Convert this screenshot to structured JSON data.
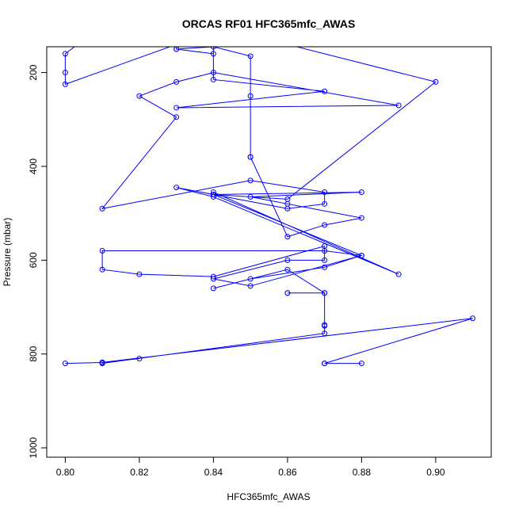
{
  "chart_data": {
    "type": "line",
    "title": "ORCAS RF01 HFC365mfc_AWAS",
    "xlabel": "HFC365mfc_AWAS",
    "ylabel": "Pressure (mbar)",
    "xlim": [
      0.795,
      0.915
    ],
    "ylim": [
      1020,
      145
    ],
    "y_reversed": true,
    "grid": false,
    "legend": "none",
    "x_ticks": [
      0.8,
      0.82,
      0.84,
      0.86,
      0.88,
      0.9
    ],
    "x_tick_labels": [
      "0.80",
      "0.82",
      "0.84",
      "0.86",
      "0.88",
      "0.90"
    ],
    "y_ticks": [
      200,
      400,
      600,
      800,
      1000
    ],
    "y_tick_labels": [
      "200",
      "400",
      "600",
      "800",
      "1000"
    ],
    "series_color": "#0000ff",
    "series": [
      {
        "x": [
          0.87,
          0.88,
          0.87,
          0.91,
          0.81,
          0.8,
          0.81,
          0.82,
          0.81,
          0.81,
          0.87,
          0.87,
          0.87,
          0.87,
          0.86,
          0.86,
          0.87,
          0.87,
          0.86,
          0.84,
          0.85,
          0.87,
          0.88,
          0.87,
          0.81,
          0.81,
          0.82,
          0.84,
          0.87,
          0.87,
          0.86,
          0.84,
          0.85,
          0.88,
          0.84,
          0.84,
          0.89,
          0.84,
          0.83,
          0.86,
          0.87,
          0.87,
          0.85,
          0.81,
          0.83,
          0.82,
          0.83,
          0.84,
          0.89,
          0.83,
          0.87,
          0.84,
          0.84,
          0.81,
          0.8,
          0.8,
          0.8,
          0.83,
          0.83,
          0.84,
          0.83,
          0.84,
          0.85,
          0.85,
          0.85,
          0.85,
          0.86,
          0.87,
          0.88,
          0.86,
          0.85,
          0.88,
          0.84,
          0.86,
          0.9,
          0.86,
          0.85
        ],
        "y": [
          820,
          820,
          820,
          724,
          818,
          820,
          818,
          810,
          818,
          820,
          756,
          740,
          738,
          670,
          670,
          670,
          670,
          670,
          620,
          660,
          640,
          615,
          590,
          580,
          580,
          620,
          630,
          635,
          570,
          600,
          600,
          640,
          655,
          590,
          460,
          455,
          630,
          465,
          445,
          490,
          480,
          455,
          430,
          490,
          295,
          250,
          220,
          200,
          270,
          275,
          240,
          215,
          130,
          100,
          160,
          200,
          225,
          140,
          150,
          160,
          150,
          145,
          165,
          250,
          380,
          380,
          550,
          525,
          510,
          480,
          465,
          455,
          460,
          470,
          220,
          140,
          130
        ]
      }
    ]
  }
}
